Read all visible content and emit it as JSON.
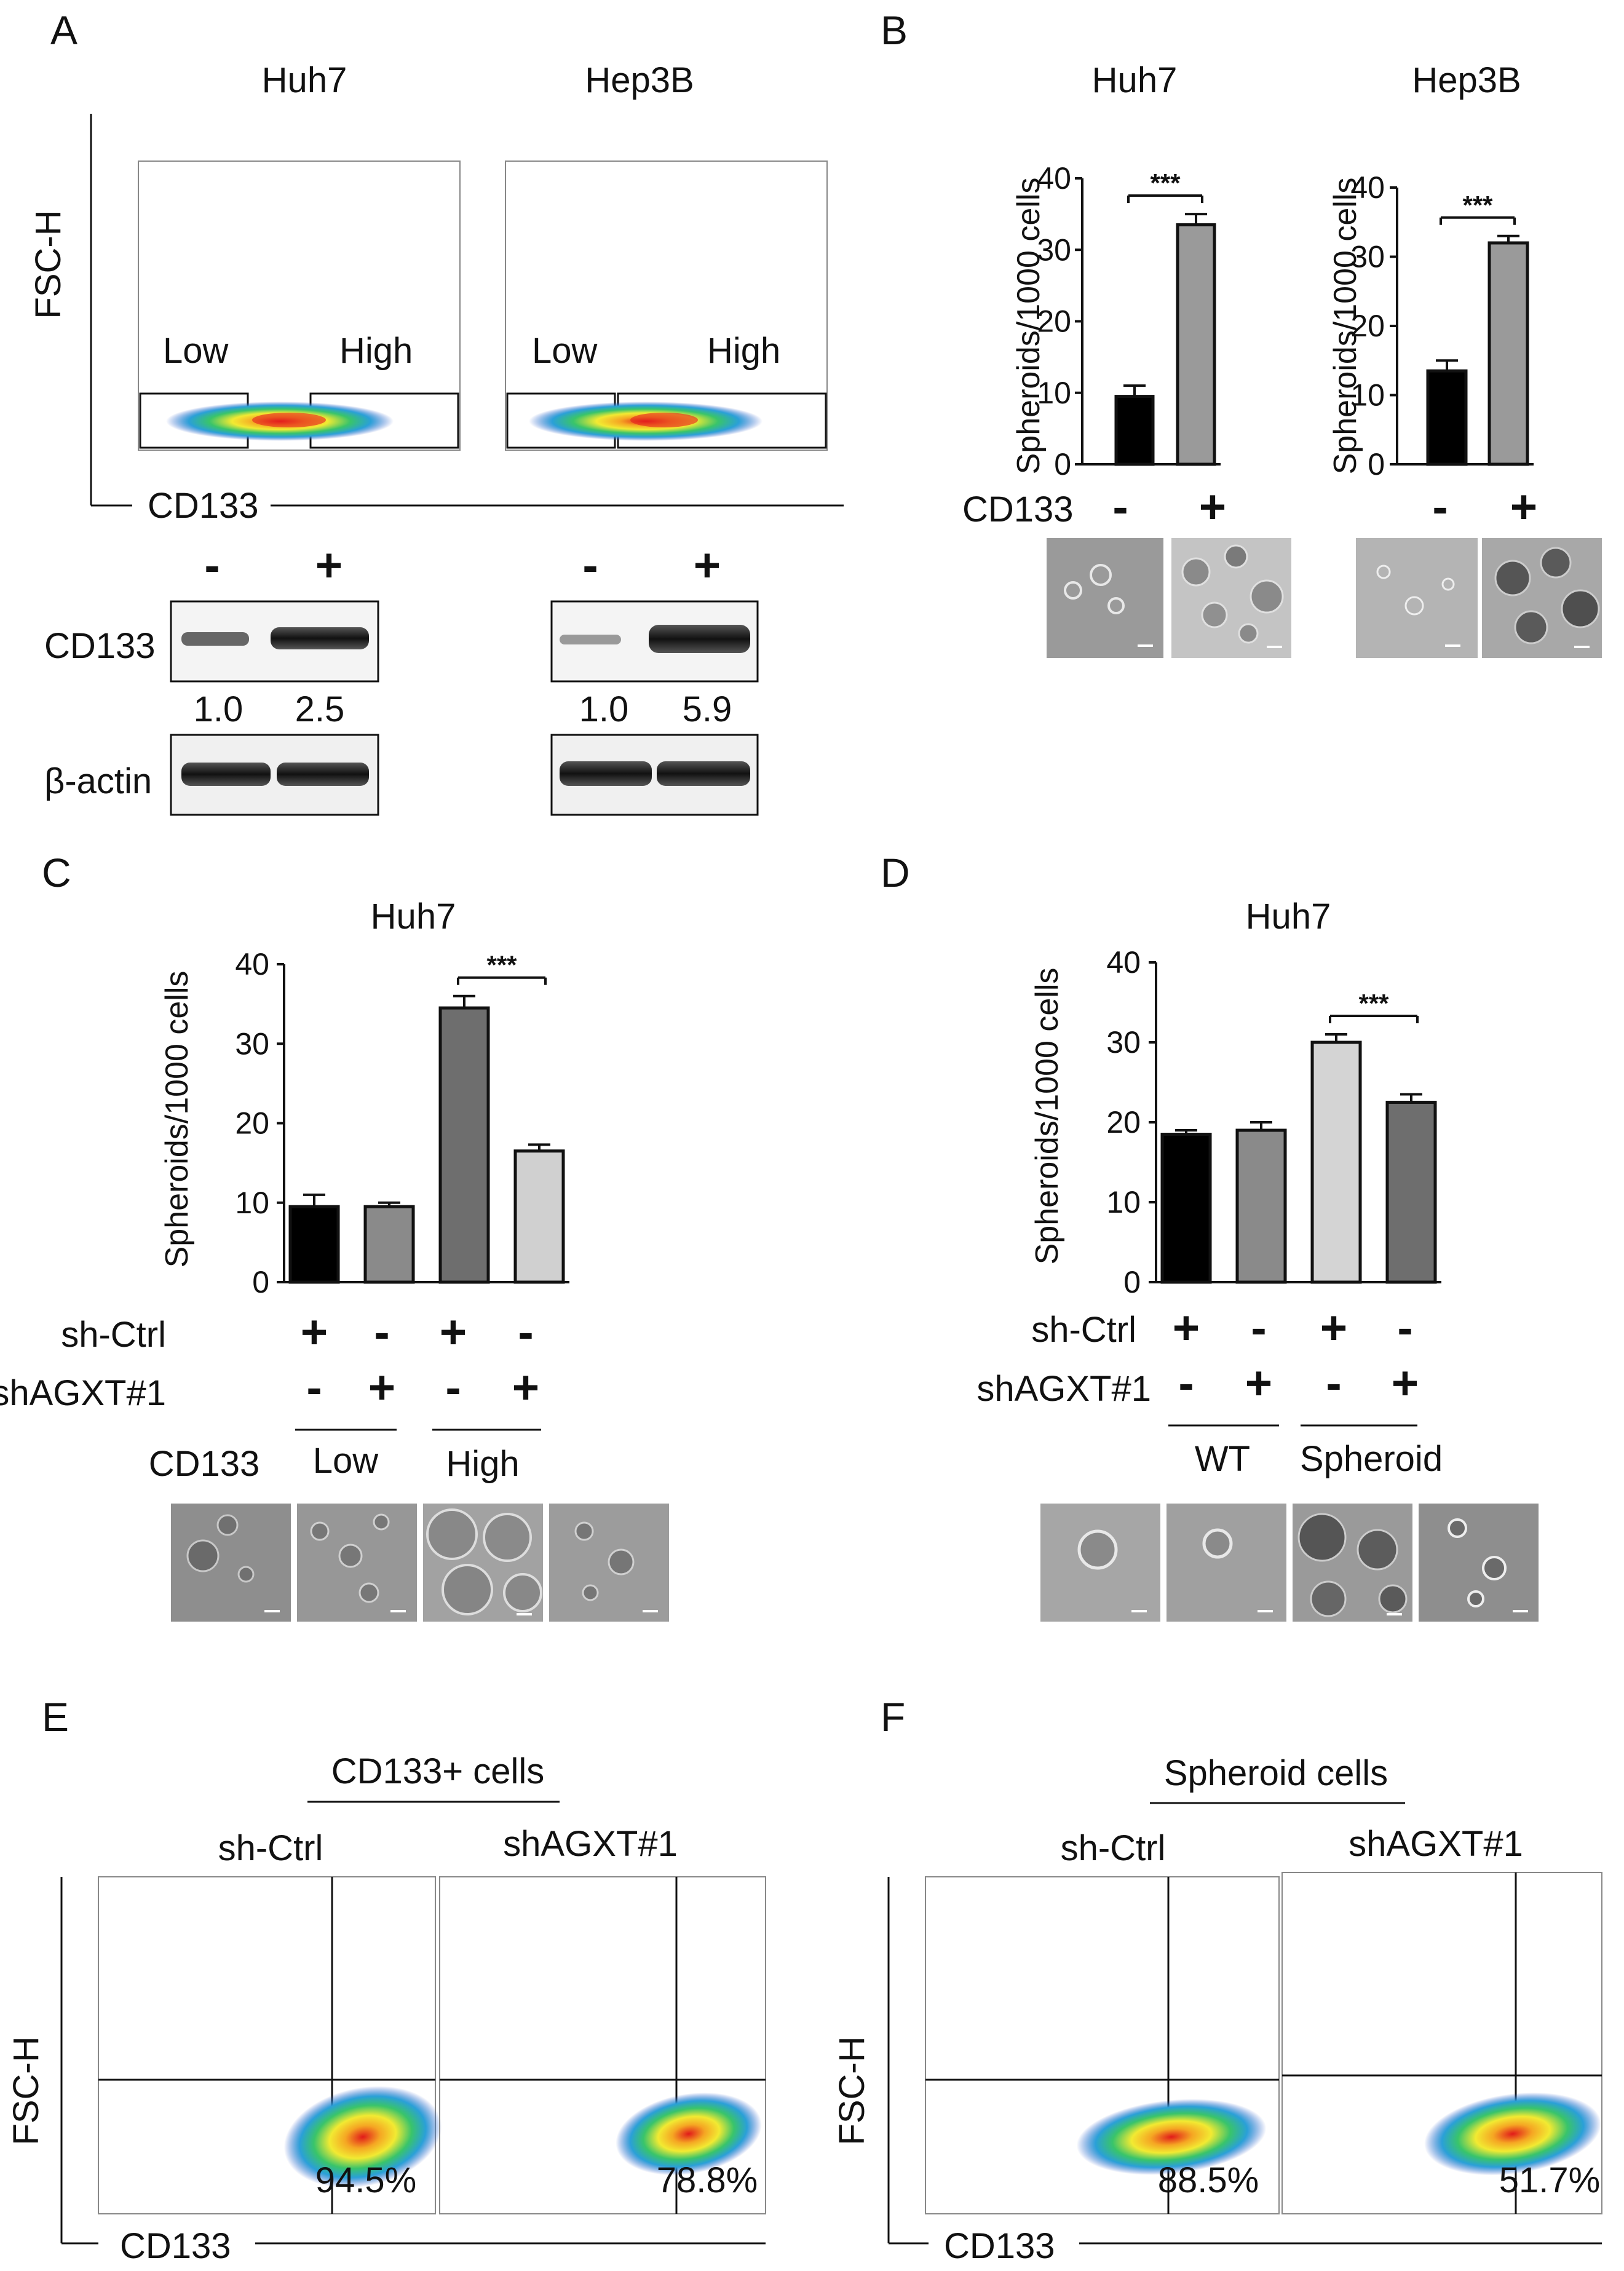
{
  "panels": {
    "A": {
      "letter": "A",
      "cells": [
        "Huh7",
        "Hep3B"
      ],
      "y_axis": "FSC-H",
      "x_axis": "CD133",
      "gates": [
        "Low",
        "High"
      ],
      "wb": {
        "lanes": [
          "-",
          "+"
        ],
        "rows": [
          "CD133",
          "β-actin"
        ],
        "huh7_ratios": [
          "1.0",
          "2.5"
        ],
        "hep3b_ratios": [
          "1.0",
          "5.9"
        ]
      }
    },
    "B": {
      "letter": "B",
      "titles": [
        "Huh7",
        "Hep3B"
      ],
      "ylabel": "Spheroids/1000 cells",
      "row_label": "CD133",
      "signs": [
        "-",
        "+"
      ],
      "sig": "***"
    },
    "C": {
      "letter": "C",
      "title": "Huh7",
      "ylabel": "Spheroids/1000 cells",
      "sig": "***",
      "rows": [
        {
          "label": "sh-Ctrl",
          "signs": [
            "+",
            "-",
            "+",
            "-"
          ]
        },
        {
          "label": "shAGXT#1",
          "signs": [
            "-",
            "+",
            "-",
            "+"
          ]
        }
      ],
      "group_row_label": "CD133",
      "groups": [
        "Low",
        "High"
      ]
    },
    "D": {
      "letter": "D",
      "title": "Huh7",
      "ylabel": "Spheroids/1000 cells",
      "sig": "***",
      "rows": [
        {
          "label": "sh-Ctrl",
          "signs": [
            "+",
            "-",
            "+",
            "-"
          ]
        },
        {
          "label": "shAGXT#1",
          "signs": [
            "-",
            "+",
            "-",
            "+"
          ]
        }
      ],
      "groups": [
        "WT",
        "Spheroid"
      ]
    },
    "E": {
      "letter": "E",
      "header": "CD133+ cells",
      "samples": [
        "sh-Ctrl",
        "shAGXT#1"
      ],
      "percents": [
        "94.5%",
        "78.8%"
      ],
      "y_axis": "FSC-H",
      "x_axis": "CD133"
    },
    "F": {
      "letter": "F",
      "header": "Spheroid cells",
      "samples": [
        "sh-Ctrl",
        "shAGXT#1"
      ],
      "percents": [
        "88.5%",
        "51.7%"
      ],
      "y_axis": "FSC-H",
      "x_axis": "CD133"
    }
  },
  "chart_data": [
    {
      "panel": "B",
      "type": "bar",
      "title": "Huh7",
      "categories": [
        "-",
        "+"
      ],
      "values": [
        9.5,
        33.5
      ],
      "errors": [
        1.5,
        1.5
      ],
      "ylabel": "Spheroids/1000 cells",
      "ylim": [
        0,
        40
      ],
      "yticks": [
        0,
        10,
        20,
        30,
        40
      ],
      "bar_colors": [
        "#000000",
        "#9a9a9a"
      ]
    },
    {
      "panel": "B",
      "type": "bar",
      "title": "Hep3B",
      "categories": [
        "-",
        "+"
      ],
      "values": [
        13.5,
        32
      ],
      "errors": [
        1.5,
        1
      ],
      "ylabel": "Spheroids/1000 cells",
      "ylim": [
        0,
        40
      ],
      "yticks": [
        0,
        10,
        20,
        30,
        40
      ],
      "bar_colors": [
        "#000000",
        "#9a9a9a"
      ]
    },
    {
      "panel": "C",
      "type": "bar",
      "title": "Huh7",
      "categories": [
        "1",
        "2",
        "3",
        "4"
      ],
      "values": [
        9.5,
        9.5,
        34.5,
        16.5
      ],
      "errors": [
        1.5,
        0.5,
        1.5,
        0.8
      ],
      "ylabel": "Spheroids/1000 cells",
      "ylim": [
        0,
        40
      ],
      "yticks": [
        0,
        10,
        20,
        30,
        40
      ],
      "bar_colors": [
        "#000000",
        "#8a8a8a",
        "#6e6e6e",
        "#d0d0d0"
      ]
    },
    {
      "panel": "D",
      "type": "bar",
      "title": "Huh7",
      "categories": [
        "1",
        "2",
        "3",
        "4"
      ],
      "values": [
        18.5,
        19,
        30,
        22.5
      ],
      "errors": [
        0.5,
        1,
        1,
        1
      ],
      "ylabel": "Spheroids/1000 cells",
      "ylim": [
        0,
        40
      ],
      "yticks": [
        0,
        10,
        20,
        30,
        40
      ],
      "bar_colors": [
        "#000000",
        "#8a8a8a",
        "#d4d4d4",
        "#6e6e6e"
      ]
    }
  ]
}
